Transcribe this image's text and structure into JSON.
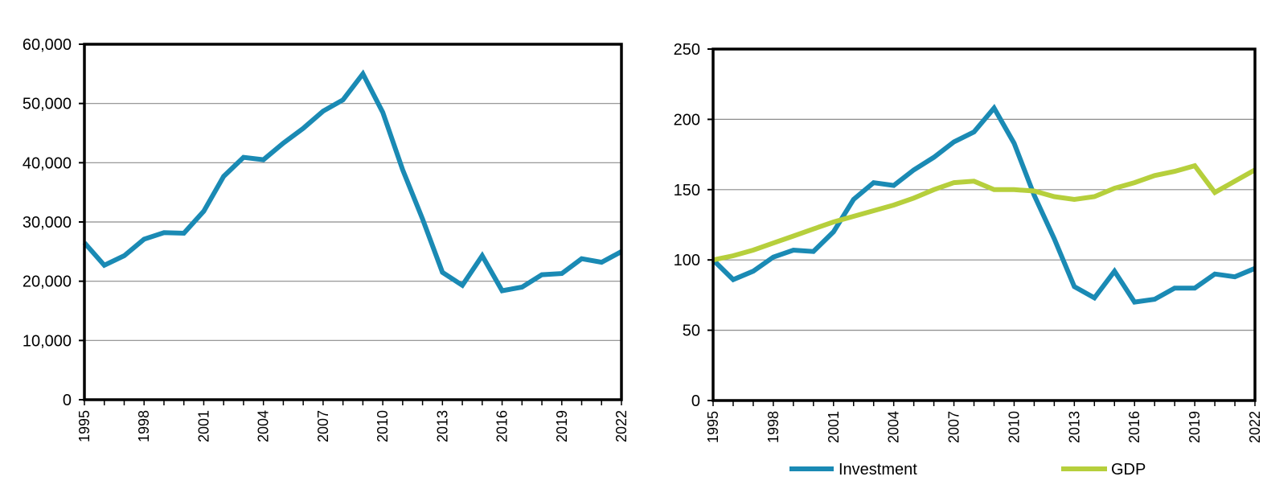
{
  "chart_data": [
    {
      "type": "line",
      "x": [
        1995,
        1996,
        1997,
        1998,
        1999,
        2000,
        2001,
        2002,
        2003,
        2004,
        2005,
        2006,
        2007,
        2008,
        2009,
        2010,
        2011,
        2012,
        2013,
        2014,
        2015,
        2016,
        2017,
        2018,
        2019,
        2020,
        2021,
        2022
      ],
      "x_tick_labels": [
        "1995",
        "1998",
        "2001",
        "2004",
        "2007",
        "2010",
        "2013",
        "2016",
        "2019",
        "2022"
      ],
      "y_tick_labels": [
        "0",
        "10,000",
        "20,000",
        "30,000",
        "40,000",
        "50,000",
        "60,000"
      ],
      "ylim": [
        0,
        60000
      ],
      "grid": true,
      "legend": null,
      "series": [
        {
          "color": "#1A8AB4",
          "values": [
            26500,
            22700,
            24300,
            27100,
            28200,
            28100,
            31800,
            37700,
            40900,
            40500,
            43300,
            45800,
            48700,
            50600,
            55000,
            48500,
            38800,
            30500,
            21500,
            19300,
            24300,
            18400,
            19000,
            21100,
            21300,
            23800,
            23200,
            25000
          ]
        }
      ]
    },
    {
      "type": "line",
      "x": [
        1995,
        1996,
        1997,
        1998,
        1999,
        2000,
        2001,
        2002,
        2003,
        2004,
        2005,
        2006,
        2007,
        2008,
        2009,
        2010,
        2011,
        2012,
        2013,
        2014,
        2015,
        2016,
        2017,
        2018,
        2019,
        2020,
        2021,
        2022
      ],
      "x_tick_labels": [
        "1995",
        "1998",
        "2001",
        "2004",
        "2007",
        "2010",
        "2013",
        "2016",
        "2019",
        "2022"
      ],
      "y_tick_labels": [
        "0",
        "50",
        "100",
        "150",
        "200",
        "250"
      ],
      "ylim": [
        0,
        250
      ],
      "grid": true,
      "legend": "bottom",
      "series": [
        {
          "name": "Investment",
          "color": "#1A8AB4",
          "values": [
            100,
            86,
            92,
            102,
            107,
            106,
            120,
            143,
            155,
            153,
            164,
            173,
            184,
            191,
            208,
            183,
            146,
            115,
            81,
            73,
            92,
            70,
            72,
            80,
            80,
            90,
            88,
            94
          ]
        },
        {
          "name": "GDP",
          "color": "#B6CF3C",
          "values": [
            100,
            103,
            107,
            112,
            117,
            122,
            127,
            131,
            135,
            139,
            144,
            150,
            155,
            156,
            150,
            150,
            149,
            145,
            143,
            145,
            151,
            155,
            160,
            163,
            167,
            148,
            156,
            164
          ]
        }
      ]
    }
  ]
}
